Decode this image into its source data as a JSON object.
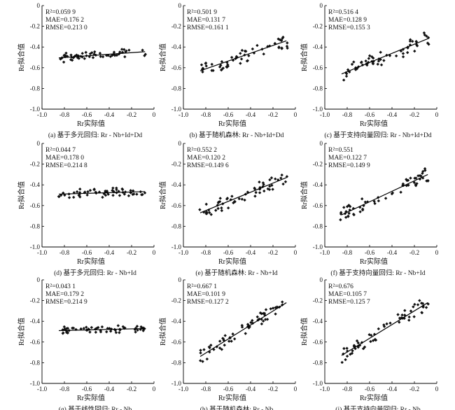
{
  "figure": {
    "x_axis_label": "Rr实际值",
    "y_axis_label": "Rr拟合值"
  },
  "chart_data": [
    {
      "type": "scatter",
      "caption": "(a) 基于多元回归: Rr - Nb+Id+Dd",
      "xlabel": "Rr实际值",
      "ylabel": "Rr拟合值",
      "xlim": [
        -1.0,
        0
      ],
      "ylim": [
        -1.0,
        0
      ],
      "xticks": [
        "-1.0",
        "-0.8",
        "-0.6",
        "-0.4",
        "-0.2",
        "0"
      ],
      "yticks": [
        "0",
        "-0.2",
        "-0.4",
        "-0.6",
        "-0.8",
        "-1.0"
      ],
      "stats": [
        "R²=0.059 9",
        "MAE=0.176 2",
        "RMSE=0.213 0"
      ],
      "fit": [
        [
          -0.85,
          -0.505
        ],
        [
          -0.08,
          -0.445
        ]
      ],
      "spread": 0.035,
      "seed": 11
    },
    {
      "type": "scatter",
      "caption": "(b) 基于随机森林: Rr - Nb+Id+Dd",
      "xlabel": "Rr实际值",
      "ylabel": "Rr拟合值",
      "xlim": [
        -1.0,
        0
      ],
      "ylim": [
        -1.0,
        0
      ],
      "xticks": [
        "-1.0",
        "-0.8",
        "-0.6",
        "-0.4",
        "-0.2",
        "0"
      ],
      "yticks": [
        "0",
        "-0.2",
        "-0.4",
        "-0.6",
        "-0.8",
        "-1.0"
      ],
      "stats": [
        "R²=0.501 9",
        "MAE=0.131 7",
        "RMSE=0.161 1"
      ],
      "fit": [
        [
          -0.85,
          -0.63
        ],
        [
          -0.08,
          -0.34
        ]
      ],
      "spread": 0.065,
      "seed": 23
    },
    {
      "type": "scatter",
      "caption": "(c) 基于支持向量回归: Rr - Nb+Id+Dd",
      "xlabel": "Rr实际值",
      "ylabel": "Rr拟合值",
      "xlim": [
        -1.0,
        0
      ],
      "ylim": [
        -1.0,
        0
      ],
      "xticks": [
        "-1.0",
        "-0.8",
        "-0.6",
        "-0.4",
        "-0.2",
        "0"
      ],
      "yticks": [
        "0",
        "-0.2",
        "-0.4",
        "-0.6",
        "-0.8",
        "-1.0"
      ],
      "stats": [
        "R²=0.516 4",
        "MAE=0.128 9",
        "RMSE=0.155 3"
      ],
      "fit": [
        [
          -0.85,
          -0.66
        ],
        [
          -0.08,
          -0.32
        ]
      ],
      "spread": 0.065,
      "seed": 37
    },
    {
      "type": "scatter",
      "caption": "(d) 基于多元回归: Rr - Nb+Id",
      "xlabel": "Rr实际值",
      "ylabel": "Rr拟合值",
      "xlim": [
        -1.0,
        0
      ],
      "ylim": [
        -1.0,
        0
      ],
      "xticks": [
        "-1.0",
        "-0.8",
        "-0.6",
        "-0.4",
        "-0.2",
        "0"
      ],
      "yticks": [
        "0",
        "-0.2",
        "-0.4",
        "-0.6",
        "-0.8",
        "-1.0"
      ],
      "stats": [
        "R²=0.044 7",
        "MAE=0.178 0",
        "RMSE=0.214 8"
      ],
      "fit": [
        [
          -0.85,
          -0.49
        ],
        [
          -0.08,
          -0.465
        ]
      ],
      "spread": 0.035,
      "seed": 41
    },
    {
      "type": "scatter",
      "caption": "(e) 基于随机森林: Rr - Nb+Id",
      "xlabel": "Rr实际值",
      "ylabel": "Rr拟合值",
      "xlim": [
        -1.0,
        0
      ],
      "ylim": [
        -1.0,
        0
      ],
      "xticks": [
        "-1.0",
        "-0.8",
        "-0.6",
        "-0.4",
        "-0.2",
        "0"
      ],
      "yticks": [
        "0",
        "-0.2",
        "-0.4",
        "-0.6",
        "-0.8",
        "-1.0"
      ],
      "stats": [
        "R²=0.552 2",
        "MAE=0.120 2",
        "RMSE=0.149 6"
      ],
      "fit": [
        [
          -0.85,
          -0.67
        ],
        [
          -0.08,
          -0.33
        ]
      ],
      "spread": 0.06,
      "seed": 53
    },
    {
      "type": "scatter",
      "caption": "(f) 基于支持向量回归: Rr - Nb+Id",
      "xlabel": "Rr实际值",
      "ylabel": "Rr拟合值",
      "xlim": [
        -1.0,
        0
      ],
      "ylim": [
        -1.0,
        0
      ],
      "xticks": [
        "-1.0",
        "-0.8",
        "-0.6",
        "-0.4",
        "-0.2",
        "0"
      ],
      "yticks": [
        "0",
        "-0.2",
        "-0.4",
        "-0.6",
        "-0.8",
        "-1.0"
      ],
      "stats": [
        "R²=0.551",
        "MAE=0.122 7",
        "RMSE=0.149 9"
      ],
      "fit": [
        [
          -0.85,
          -0.69
        ],
        [
          -0.08,
          -0.3
        ]
      ],
      "spread": 0.06,
      "seed": 67
    },
    {
      "type": "scatter",
      "caption": "(g) 基于线性回归: Rr - Nb",
      "xlabel": "Rr实际值",
      "ylabel": "Rr拟合值",
      "xlim": [
        -1.0,
        0
      ],
      "ylim": [
        -1.0,
        0
      ],
      "xticks": [
        "-1.0",
        "-0.8",
        "-0.6",
        "-0.4",
        "-0.2",
        "0"
      ],
      "yticks": [
        "0",
        "-0.2",
        "-0.4",
        "-0.6",
        "-0.8",
        "-1.0"
      ],
      "stats": [
        "R²=0.043 1",
        "MAE=0.179 2",
        "RMSE=0.214 9"
      ],
      "fit": [
        [
          -0.85,
          -0.49
        ],
        [
          -0.08,
          -0.47
        ]
      ],
      "spread": 0.03,
      "seed": 71
    },
    {
      "type": "scatter",
      "caption": "(h) 基于随机森林: Rr - Nb",
      "xlabel": "Rr实际值",
      "ylabel": "Rr拟合值",
      "xlim": [
        -1.0,
        0
      ],
      "ylim": [
        -1.0,
        0
      ],
      "xticks": [
        "-1.0",
        "-0.8",
        "-0.6",
        "-0.4",
        "-0.2",
        "0"
      ],
      "yticks": [
        "0",
        "-0.2",
        "-0.4",
        "-0.6",
        "-0.8",
        "-1.0"
      ],
      "stats": [
        "R²=0.667 1",
        "MAE=0.101 9",
        "RMSE=0.127 2"
      ],
      "fit": [
        [
          -0.85,
          -0.74
        ],
        [
          -0.08,
          -0.22
        ]
      ],
      "spread": 0.055,
      "seed": 83
    },
    {
      "type": "scatter",
      "caption": "(i) 基于支持向量回归: Rr - Nb",
      "xlabel": "Rr实际值",
      "ylabel": "Rr拟合值",
      "xlim": [
        -1.0,
        0
      ],
      "ylim": [
        -1.0,
        0
      ],
      "xticks": [
        "-1.0",
        "-0.8",
        "-0.6",
        "-0.4",
        "-0.2",
        "0"
      ],
      "yticks": [
        "0",
        "-0.2",
        "-0.4",
        "-0.6",
        "-0.8",
        "-1.0"
      ],
      "stats": [
        "R²=0.676",
        "MAE=0.105 7",
        "RMSE=0.125 7"
      ],
      "fit": [
        [
          -0.85,
          -0.73
        ],
        [
          -0.08,
          -0.22
        ]
      ],
      "spread": 0.055,
      "seed": 97
    }
  ]
}
